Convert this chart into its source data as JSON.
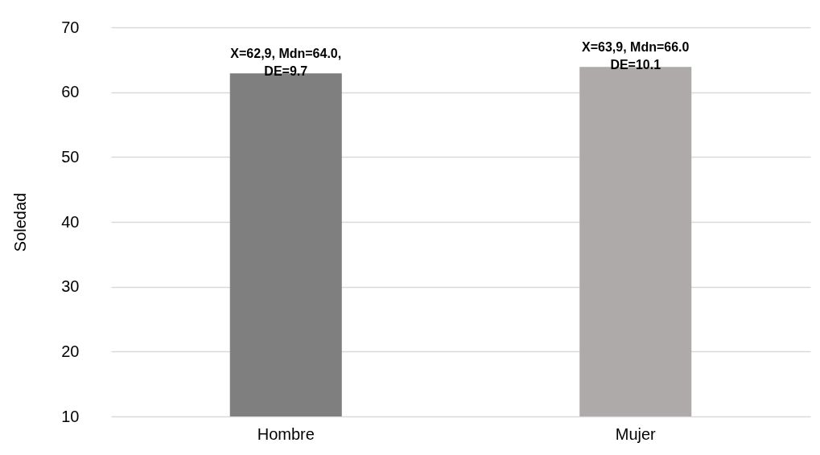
{
  "chart_data": {
    "type": "bar",
    "ylabel": "Soledad",
    "categories": [
      "Hombre",
      "Mujer"
    ],
    "values": [
      62.9,
      63.9
    ],
    "colors": [
      "#7f7f7f",
      "#aeaaaa"
    ],
    "value_labels": [
      "X=62,9, Mdn=64.0,\nDE=9.7",
      "X=63,9, Mdn=66.0\nDE=10.1"
    ],
    "ylim": [
      10,
      70
    ],
    "yticks": [
      10,
      20,
      30,
      40,
      50,
      60,
      70
    ],
    "grid": "y"
  }
}
